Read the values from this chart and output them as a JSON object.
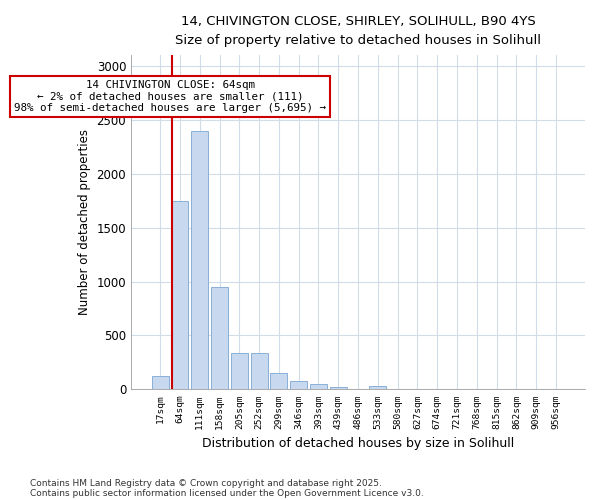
{
  "title1": "14, CHIVINGTON CLOSE, SHIRLEY, SOLIHULL, B90 4YS",
  "title2": "Size of property relative to detached houses in Solihull",
  "xlabel": "Distribution of detached houses by size in Solihull",
  "ylabel": "Number of detached properties",
  "categories": [
    "17sqm",
    "64sqm",
    "111sqm",
    "158sqm",
    "205sqm",
    "252sqm",
    "299sqm",
    "346sqm",
    "393sqm",
    "439sqm",
    "486sqm",
    "533sqm",
    "580sqm",
    "627sqm",
    "674sqm",
    "721sqm",
    "768sqm",
    "815sqm",
    "862sqm",
    "909sqm",
    "956sqm"
  ],
  "values": [
    120,
    1750,
    2400,
    950,
    340,
    340,
    155,
    80,
    45,
    20,
    5,
    30,
    5,
    0,
    0,
    0,
    0,
    0,
    0,
    0,
    0
  ],
  "bar_color": "#c8d8ee",
  "bar_edge_color": "#8ab0d8",
  "vline_color": "#cc0000",
  "annotation_text": "14 CHIVINGTON CLOSE: 64sqm\n← 2% of detached houses are smaller (111)\n98% of semi-detached houses are larger (5,695) →",
  "box_color": "#cc0000",
  "ylim": [
    0,
    3100
  ],
  "yticks": [
    0,
    500,
    1000,
    1500,
    2000,
    2500,
    3000
  ],
  "bg_color": "#ffffff",
  "grid_color": "#d0dce8",
  "footer1": "Contains HM Land Registry data © Crown copyright and database right 2025.",
  "footer2": "Contains public sector information licensed under the Open Government Licence v3.0."
}
